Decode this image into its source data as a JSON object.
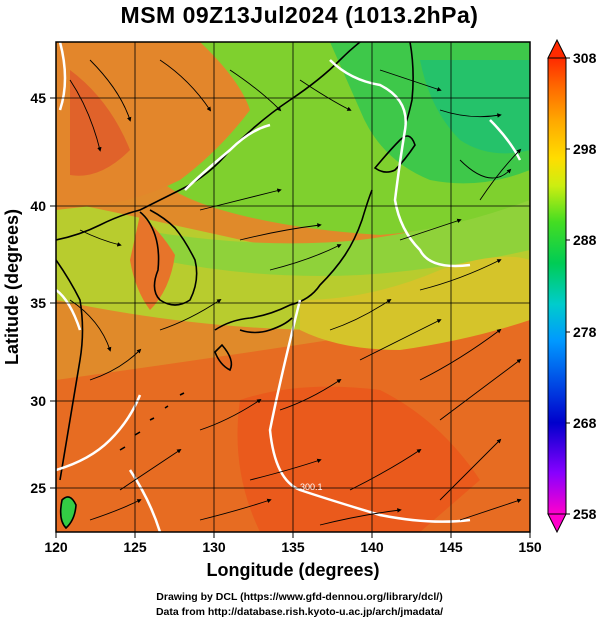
{
  "title": "MSM 09Z13Jul2024 (1013.2hPa)",
  "map": {
    "lon_range": [
      120,
      150
    ],
    "lat_range": [
      22.4,
      47.6
    ],
    "lon_ticks": [
      "120",
      "125",
      "130",
      "135",
      "140",
      "145",
      "150"
    ],
    "lat_ticks": [
      "25",
      "30",
      "35",
      "40",
      "45"
    ],
    "xlabel": "Longitude (degrees)",
    "ylabel": "Latitude  (degrees)",
    "contour_label": "300.1",
    "grid": true
  },
  "colorbar": {
    "ticks": [
      "308",
      "298",
      "288",
      "278",
      "268",
      "258"
    ],
    "range": [
      258,
      308
    ],
    "colors": [
      "#ff00cc",
      "#8800ff",
      "#0000cc",
      "#0088ff",
      "#00cccc",
      "#00cc66",
      "#33dd33",
      "#aaee22",
      "#ffee00",
      "#ffaa00",
      "#ff6600",
      "#ff2200"
    ]
  },
  "credits": {
    "line1": "Drawing by DCL (https://www.gfd-dennou.org/library/dcl/)",
    "line2": "Data from http://database.rish.kyoto-u.ac.jp/arch/jmadata/"
  }
}
